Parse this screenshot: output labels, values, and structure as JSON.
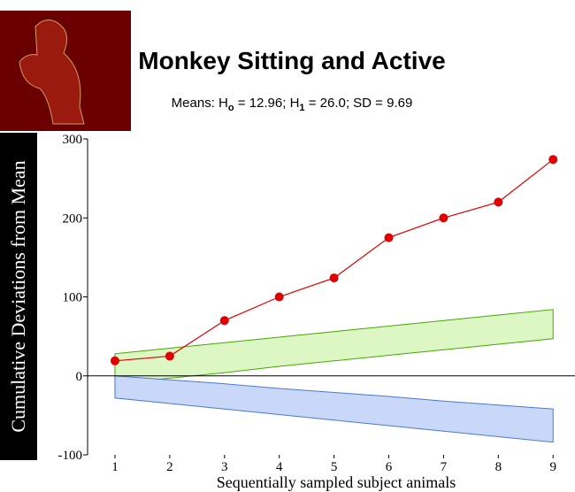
{
  "chart_data": {
    "type": "line",
    "title": "Monkey  Sitting and Active",
    "subtitle": [
      "Means:  H",
      "o",
      " = 12.96;  H",
      "1",
      " = 26.0;  SD = 9.69"
    ],
    "y_label": "Cumulative Deviations from Mean",
    "x_label": "Sequentially sampled subject animals",
    "x": [
      1,
      2,
      3,
      4,
      5,
      6,
      7,
      8,
      9
    ],
    "series": [
      {
        "color": "#e00000",
        "values": [
          19,
          25,
          70,
          100,
          124,
          175,
          200,
          220,
          274
        ]
      }
    ],
    "bands": [
      {
        "color": "#44aa00",
        "fill": "#ddf7c4",
        "lower": [
          -10,
          -3,
          4,
          12,
          19,
          26,
          33,
          40,
          47
        ],
        "upper": [
          28,
          35,
          42,
          49,
          56,
          63,
          70,
          77,
          84
        ]
      },
      {
        "color": "#4a78d8",
        "fill": "#c9d8f8",
        "lower": [
          -28,
          -35,
          -42,
          -49,
          -56,
          -63,
          -70,
          -77,
          -84
        ],
        "upper": [
          0,
          -5,
          -10,
          -16,
          -21,
          -26,
          -32,
          -37,
          -42
        ]
      }
    ],
    "xlim": [
      0.5,
      9.4
    ],
    "xticks": [
      1,
      2,
      3,
      4,
      5,
      6,
      7,
      8,
      9
    ],
    "ylim": [
      -100,
      300
    ],
    "yticks": [
      -100,
      0,
      100,
      200,
      300
    ]
  }
}
